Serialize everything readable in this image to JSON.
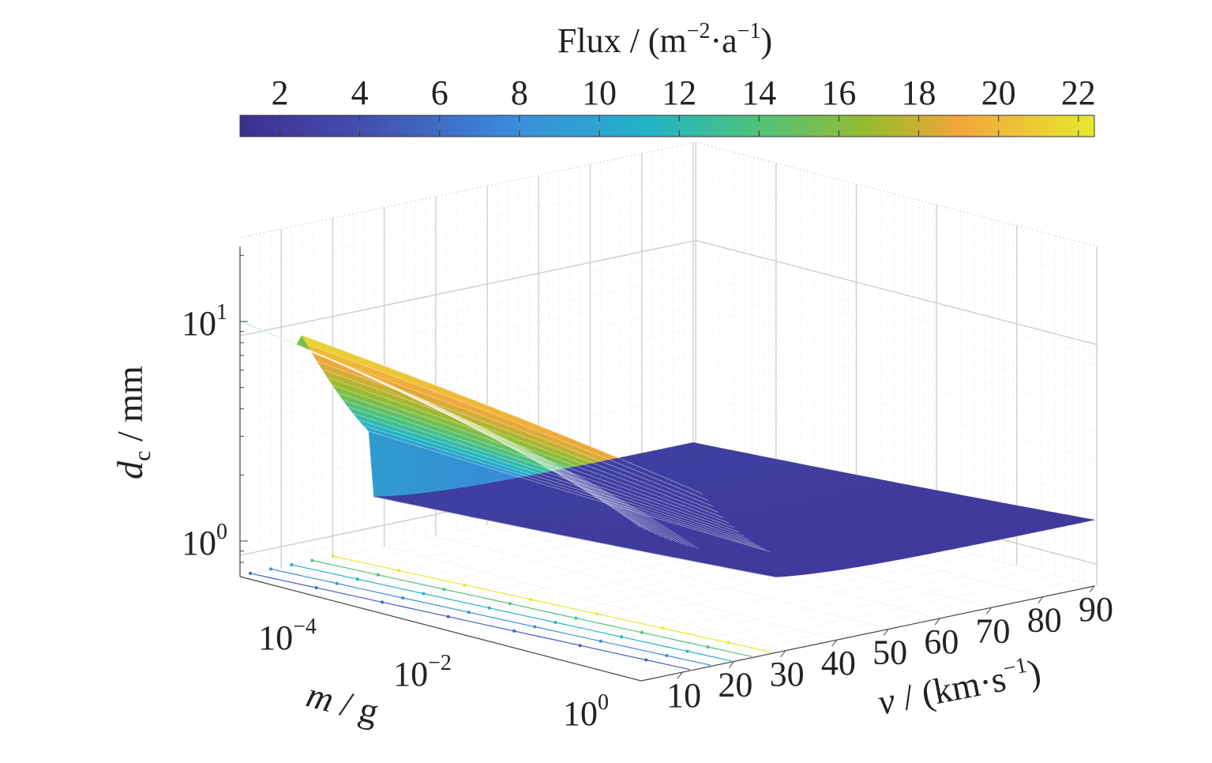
{
  "chart_data": {
    "type": "surface3d",
    "title": "",
    "colorbar": {
      "label_main": "Flux / (m",
      "label_sup1": "−2",
      "label_mid": "·a",
      "label_sup2": "−1",
      "label_end": ")",
      "ticks": [
        "2",
        "4",
        "6",
        "8",
        "10",
        "12",
        "14",
        "16",
        "18",
        "20",
        "22"
      ],
      "tick_values": [
        2,
        4,
        6,
        8,
        10,
        12,
        14,
        16,
        18,
        20,
        22
      ],
      "range": [
        1,
        22.4
      ],
      "colormap": [
        "#3e2f92",
        "#4350b0",
        "#3a87d8",
        "#22b3c6",
        "#4cc27c",
        "#99bb2e",
        "#f2a53a",
        "#e6e830"
      ]
    },
    "z_axis": {
      "label_main": "d",
      "label_sub": "c",
      "label_end": " / mm",
      "scale": "log",
      "ticks": [
        {
          "base": "10",
          "exp": "1",
          "value": 10
        },
        {
          "base": "10",
          "exp": "0",
          "value": 1
        }
      ]
    },
    "m_axis": {
      "label_main": "m",
      "label_end": " / g",
      "scale": "log",
      "ticks": [
        {
          "base": "10",
          "exp": "−4",
          "value": 0.0001
        },
        {
          "base": "10",
          "exp": "−2",
          "value": 0.01
        },
        {
          "base": "10",
          "exp": "0",
          "value": 1
        }
      ]
    },
    "v_axis": {
      "label_main": "v",
      "label_mid": " / (km·s",
      "label_sup": "−1",
      "label_end": ")",
      "ticks": [
        "10",
        "20",
        "30",
        "40",
        "50",
        "60",
        "70",
        "80",
        "90"
      ],
      "tick_values": [
        10,
        20,
        30,
        40,
        50,
        60,
        70,
        80,
        90
      ]
    },
    "grid": true,
    "surface": {
      "description_hidden": false,
      "v_range": [
        10,
        90
      ],
      "m_range_log10": [
        -5,
        0
      ],
      "dc_range": [
        0.8,
        16
      ]
    }
  }
}
